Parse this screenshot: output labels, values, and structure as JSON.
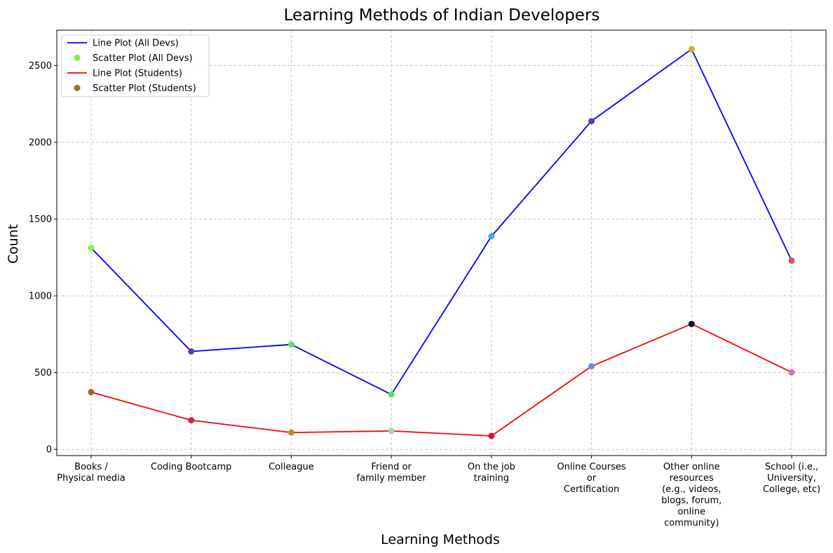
{
  "chart_data": {
    "type": "line",
    "title": "Learning Methods of Indian Developers",
    "xlabel": "Learning Methods",
    "ylabel": "Count",
    "categories": [
      [
        "Books /",
        "Physical media"
      ],
      [
        "Coding Bootcamp"
      ],
      [
        "Colleague"
      ],
      [
        "Friend or",
        "family member"
      ],
      [
        "On the job",
        "training"
      ],
      [
        "Online Courses",
        "or",
        "Certification"
      ],
      [
        "Other online",
        "resources",
        "(e.g., videos,",
        "blogs, forum,",
        "online",
        "community)"
      ],
      [
        "School (i.e.,",
        "University,",
        "College, etc)"
      ]
    ],
    "ylim": [
      -40,
      2730
    ],
    "yticks": [
      0,
      500,
      1000,
      1500,
      2000,
      2500
    ],
    "grid": true,
    "legend_position": "top-left",
    "series": [
      {
        "name": "Line Plot (All Devs)",
        "kind": "line",
        "color": "#0000ff",
        "values": [
          1312,
          638,
          683,
          358,
          1388,
          2138,
          2606,
          1229
        ]
      },
      {
        "name": "Scatter Plot (All Devs)",
        "kind": "scatter",
        "legend_color": "#7ef542",
        "values": [
          1312,
          638,
          683,
          358,
          1388,
          2138,
          2606,
          1229
        ],
        "point_colors": [
          "#7ef542",
          "#6a3a9a",
          "#66dd55",
          "#66dd55",
          "#4aa6f0",
          "#6a3a9a",
          "#c9b12e",
          "#e0506a"
        ]
      },
      {
        "name": "Line Plot (Students)",
        "kind": "line",
        "color": "#ff0000",
        "values": [
          373,
          190,
          110,
          120,
          88,
          542,
          817,
          502
        ]
      },
      {
        "name": "Scatter Plot (Students)",
        "kind": "scatter",
        "legend_color": "#9a6a2a",
        "values": [
          373,
          190,
          110,
          120,
          88,
          542,
          817,
          502
        ],
        "point_colors": [
          "#9a6a2a",
          "#d0205a",
          "#9aa02a",
          "#a8d8a8",
          "#e0103a",
          "#6a8adf",
          "#101030",
          "#d870b0"
        ]
      }
    ]
  }
}
